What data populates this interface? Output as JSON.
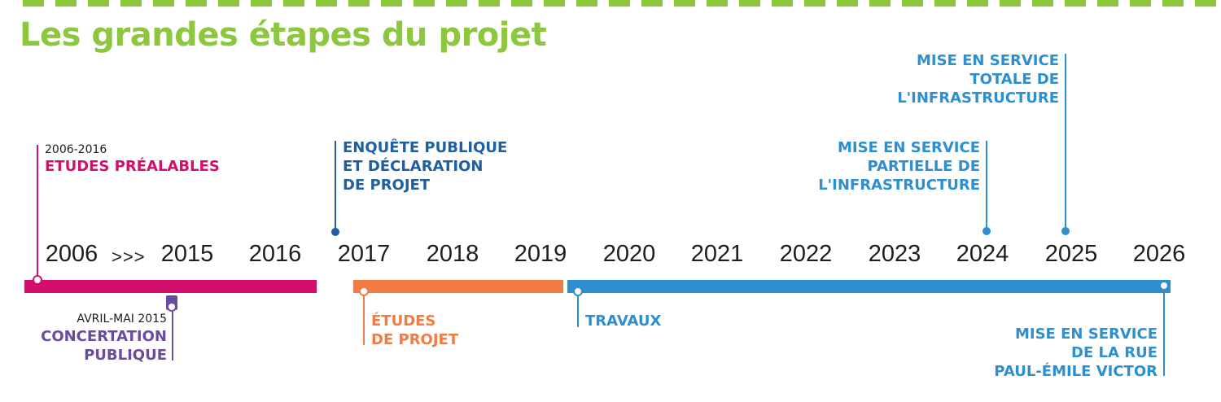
{
  "title": "Les grandes étapes du projet",
  "colors": {
    "green": "#8dc63f",
    "magenta": "#d20f6d",
    "orange": "#f07b43",
    "blue": "#2d8fcf",
    "darkblue": "#1f5fa0",
    "purple": "#6a4c9c"
  },
  "timeline": {
    "years": [
      "2006",
      "2015",
      "2016",
      "2017",
      "2018",
      "2019",
      "2020",
      "2021",
      "2022",
      "2023",
      "2024",
      "2025",
      "2026"
    ],
    "gap_marker": ">>>"
  },
  "phases": [
    {
      "name": "etudes-prealables",
      "range": "2006-2016",
      "title": "ETUDES PRÉALABLES"
    },
    {
      "name": "etudes-de-projet",
      "lines": [
        "ÉTUDES",
        "DE PROJET"
      ]
    },
    {
      "name": "travaux",
      "title": "TRAVAUX"
    }
  ],
  "events": {
    "concertation": {
      "date": "AVRIL-MAI 2015",
      "lines": [
        "CONCERTATION",
        "PUBLIQUE"
      ]
    },
    "enquete": {
      "lines": [
        "ENQUÊTE PUBLIQUE",
        "ET DÉCLARATION",
        "DE PROJET"
      ]
    },
    "mes_partielle": {
      "lines": [
        "MISE EN SERVICE",
        "PARTIELLE DE",
        "L'INFRASTRUCTURE"
      ]
    },
    "mes_totale": {
      "lines": [
        "MISE EN SERVICE",
        "TOTALE DE",
        "L'INFRASTRUCTURE"
      ]
    },
    "mes_rue": {
      "lines": [
        "MISE EN SERVICE",
        "DE LA RUE",
        "PAUL-ÉMILE VICTOR"
      ]
    }
  }
}
